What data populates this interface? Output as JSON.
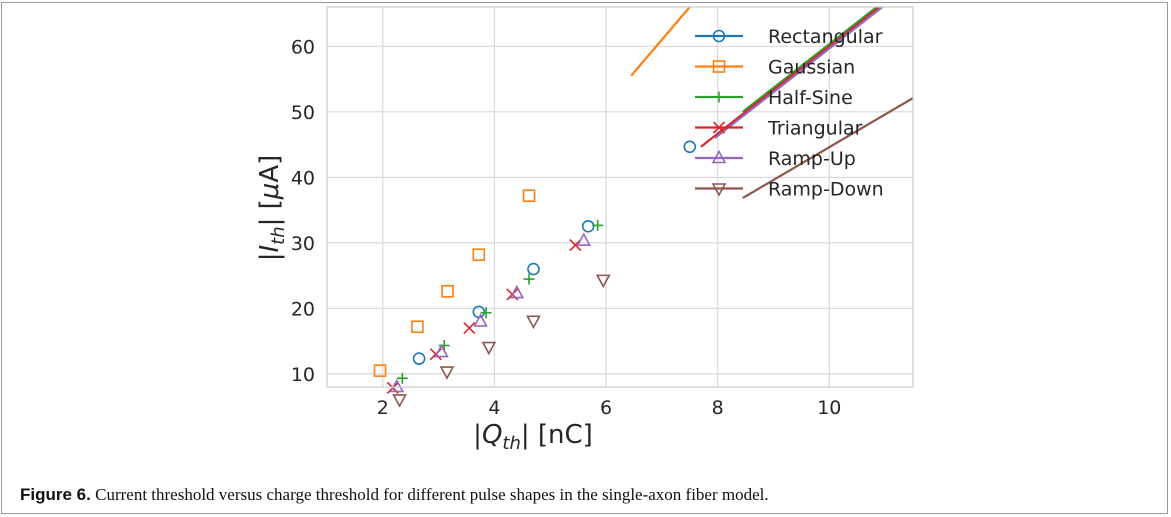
{
  "figure": {
    "caption_label": "Figure 6.",
    "caption_text": " Current threshold versus charge threshold for different pulse shapes in the single-axon fiber model."
  },
  "chart_data": {
    "type": "line",
    "xlabel": "|Qth| [nC]",
    "ylabel": "|Ith| [μA]",
    "xlim": [
      1.0,
      11.5
    ],
    "ylim": [
      8.0,
      66.0
    ],
    "xticks": [
      2,
      4,
      6,
      8,
      10
    ],
    "yticks": [
      10,
      20,
      30,
      40,
      50,
      60
    ],
    "grid": true,
    "legend_position": "top-right",
    "series": [
      {
        "name": "Rectangular",
        "color": "#1f77b4",
        "marker": "circle",
        "charge_intercept": 0.8,
        "time_constant": 0.15,
        "x_range": [
          1.45,
          11.1
        ],
        "marker_x": [
          2.65,
          3.72,
          4.7,
          5.68,
          7.5
        ]
      },
      {
        "name": "Gaussian",
        "color": "#ff7f0e",
        "marker": "square",
        "charge_intercept": 0.9,
        "time_constant": 0.1,
        "x_range": [
          1.5,
          6.45
        ],
        "marker_x": [
          1.95,
          2.62,
          3.16,
          3.72,
          4.62
        ]
      },
      {
        "name": "Half-Sine",
        "color": "#2ca02c",
        "marker": "plus",
        "charge_intercept": 0.95,
        "time_constant": 0.15,
        "x_range": [
          1.4,
          8.45
        ],
        "marker_x": [
          2.35,
          3.1,
          3.85,
          4.62,
          5.85
        ]
      },
      {
        "name": "Triangular",
        "color": "#d62728",
        "marker": "x",
        "charge_intercept": 1.0,
        "time_constant": 0.15,
        "x_range": [
          1.55,
          7.7
        ],
        "marker_x": [
          2.18,
          2.95,
          3.55,
          4.32,
          5.45
        ]
      },
      {
        "name": "Ramp-Up",
        "color": "#9467bd",
        "marker": "triangle-up",
        "charge_intercept": 1.05,
        "time_constant": 0.15,
        "x_range": [
          1.6,
          7.95
        ],
        "marker_x": [
          2.25,
          3.05,
          3.75,
          4.4,
          5.6
        ]
      },
      {
        "name": "Ramp-Down",
        "color": "#8c564b",
        "marker": "triangle-down",
        "charge_intercept": 1.08,
        "time_constant": 0.2,
        "x_range": [
          1.62,
          8.45
        ],
        "marker_x": [
          2.3,
          3.15,
          3.9,
          4.7,
          5.95
        ]
      }
    ]
  }
}
